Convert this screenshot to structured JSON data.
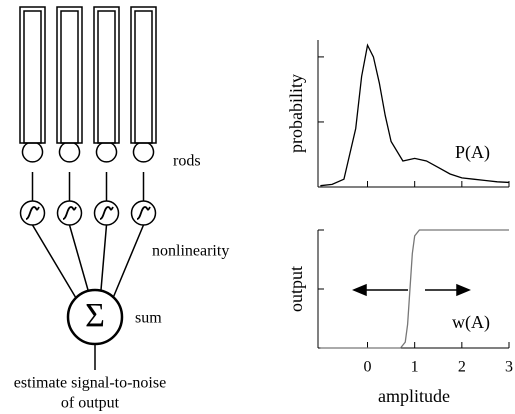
{
  "diagram": {
    "rods": "rods",
    "nonlinearity": "nonlinearity",
    "sum": "sum",
    "sum_symbol": "Σ",
    "output_line1": "estimate signal-to-noise",
    "output_line2": "of output"
  },
  "chart_data": [
    {
      "type": "line",
      "y_label": "probability",
      "annotation": "P(A)",
      "x": [
        -1,
        -0.75,
        -0.5,
        -0.25,
        -0.125,
        0,
        0.125,
        0.25,
        0.375,
        0.5,
        0.75,
        1,
        1.25,
        1.5,
        1.75,
        2,
        2.25,
        2.5,
        2.75,
        3
      ],
      "series": [
        {
          "color": "#000000",
          "values": [
            0.01,
            0.02,
            0.06,
            0.45,
            0.85,
            1.09,
            1.0,
            0.8,
            0.55,
            0.35,
            0.2,
            0.22,
            0.2,
            0.15,
            0.1,
            0.07,
            0.06,
            0.05,
            0.04,
            0.035
          ]
        }
      ],
      "xlim": [
        -1.05,
        3
      ],
      "ylim": [
        0,
        1.13
      ],
      "xticks": [
        0,
        1,
        2,
        3
      ],
      "yticks": [
        0,
        0.5,
        1
      ],
      "tick_labels": false
    },
    {
      "type": "line",
      "y_label": "output",
      "x_label": "amplitude",
      "annotation": "w(A)",
      "x": [
        -1,
        0.7,
        0.8,
        0.85,
        0.9,
        0.95,
        1.0,
        1.1,
        3
      ],
      "series": [
        {
          "color": "#777777",
          "values": [
            0,
            0,
            0.05,
            0.2,
            0.5,
            0.8,
            0.95,
            1,
            1
          ]
        }
      ],
      "xlim": [
        -1.05,
        3
      ],
      "ylim": [
        0,
        1
      ],
      "xticks": [
        0,
        1,
        2,
        3
      ],
      "yticks": [
        0,
        0.5,
        1
      ],
      "tick_labels": true
    }
  ]
}
